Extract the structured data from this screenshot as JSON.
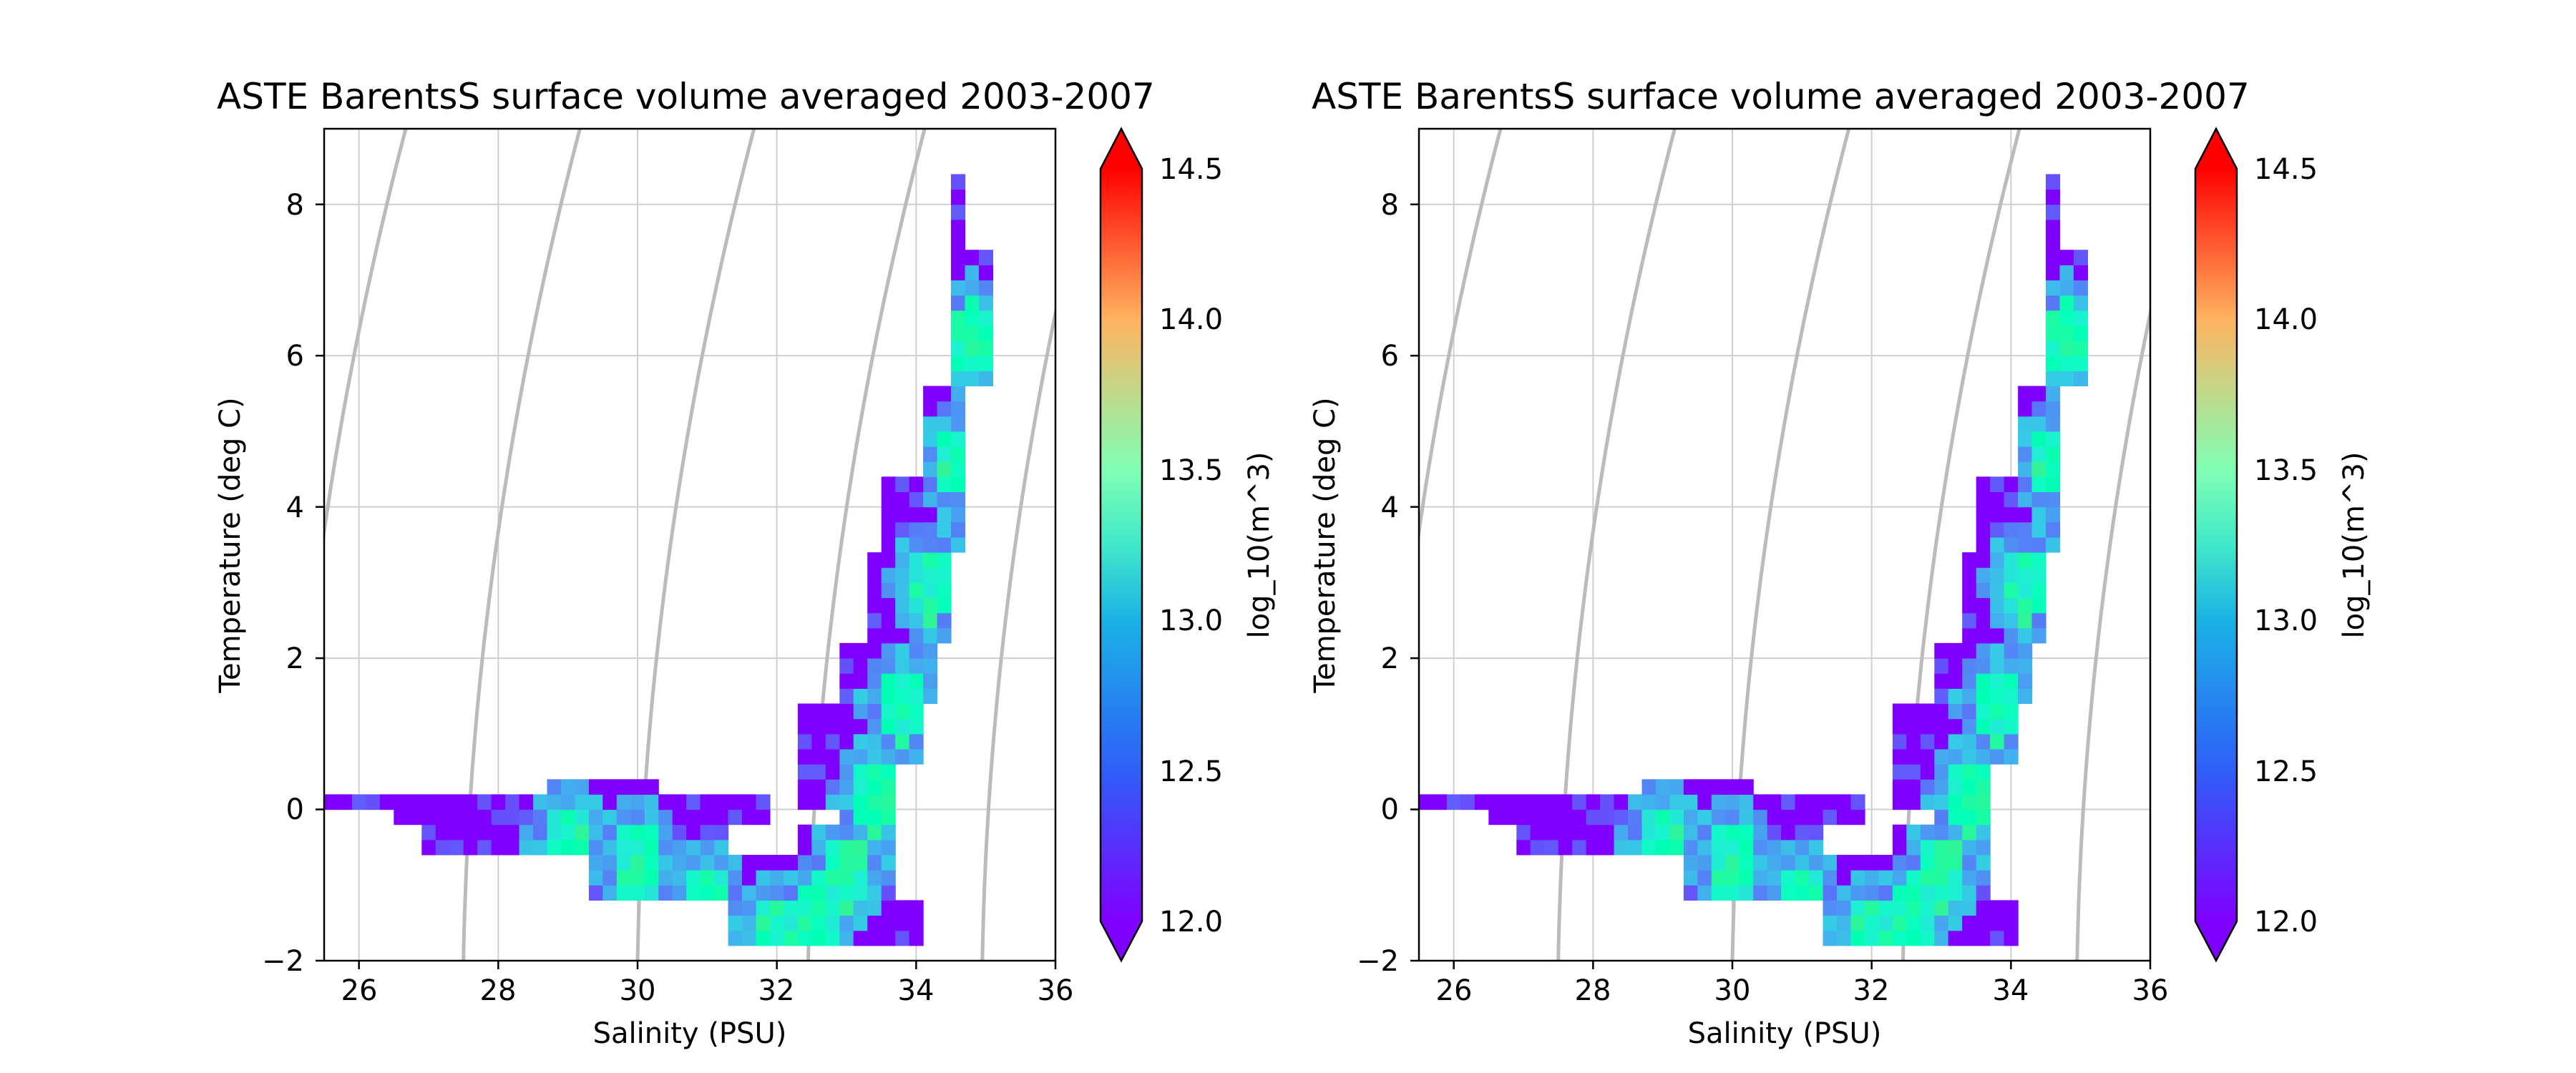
{
  "chart_data": [
    {
      "type": "heatmap",
      "title": "ASTE BarentsS surface volume averaged 2003-2007",
      "xlabel": "Salinity (PSU)",
      "ylabel": "Temperature (deg C)",
      "xlim": [
        25.5,
        36
      ],
      "ylim": [
        -2,
        9
      ],
      "xticks": [
        "26",
        "28",
        "30",
        "32",
        "34",
        "36"
      ],
      "yticks": [
        "−2",
        "0",
        "2",
        "4",
        "6",
        "8"
      ],
      "grid": true,
      "colormap": "rainbow",
      "colorbar": {
        "label": "log_10(m^3)",
        "range": [
          12.0,
          14.5
        ],
        "ticks": [
          "12.0",
          "12.5",
          "13.0",
          "13.5",
          "14.0",
          "14.5"
        ],
        "extend": "both"
      },
      "isopycnal_contours_color": "#bbbbbb"
    },
    {
      "type": "heatmap",
      "title": "ASTE BarentsS surface volume averaged 2003-2007",
      "xlabel": "Salinity (PSU)",
      "ylabel": "Temperature (deg C)",
      "xlim": [
        25.5,
        36
      ],
      "ylim": [
        -2,
        9
      ],
      "xticks": [
        "26",
        "28",
        "30",
        "32",
        "34",
        "36"
      ],
      "yticks": [
        "−2",
        "0",
        "2",
        "4",
        "6",
        "8"
      ],
      "grid": true,
      "colormap": "rainbow",
      "colorbar": {
        "label": "log_10(m^3)",
        "range": [
          12.0,
          14.5
        ],
        "ticks": [
          "12.0",
          "12.5",
          "13.0",
          "13.5",
          "14.0",
          "14.5"
        ],
        "extend": "both"
      },
      "isopycnal_contours_color": "#bbbbbb"
    }
  ]
}
